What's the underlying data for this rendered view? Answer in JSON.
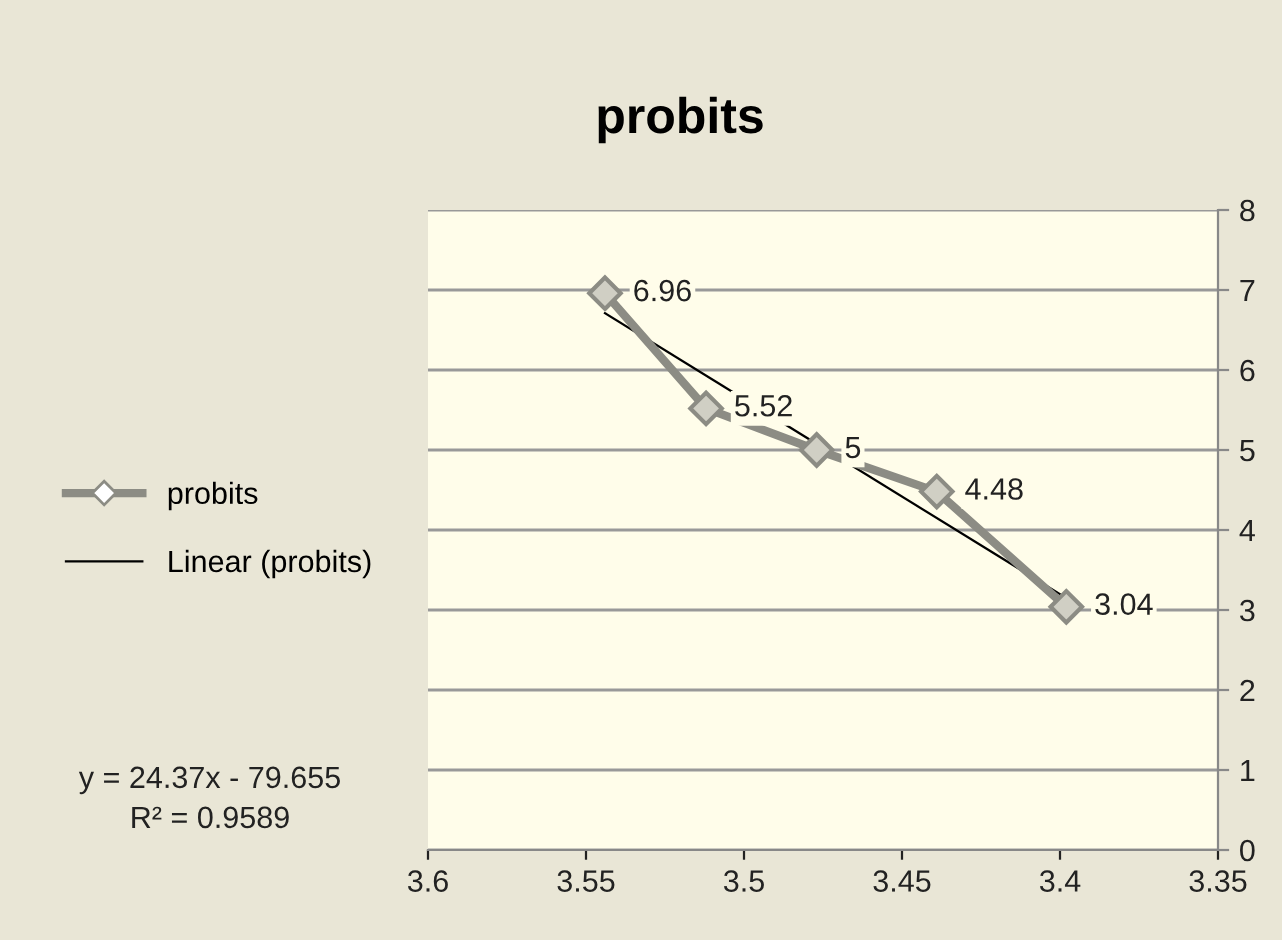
{
  "chart_data": {
    "type": "line",
    "title": "probits",
    "series": [
      {
        "name": "probits",
        "color": "#8c8c84",
        "x": [
          3.544,
          3.512,
          3.477,
          3.439,
          3.398
        ],
        "values": [
          6.96,
          5.52,
          5,
          4.48,
          3.04
        ],
        "marker": "diamond",
        "data_labels": true
      },
      {
        "name": "Linear (probits)",
        "color": "#000000",
        "x": [
          3.544,
          3.398
        ],
        "values": [
          6.71,
          3.15
        ],
        "marker": "none"
      }
    ],
    "xlim": [
      3.6,
      3.35
    ],
    "xticks": [
      3.6,
      3.55,
      3.5,
      3.45,
      3.4,
      3.35
    ],
    "ylim": [
      0,
      8
    ],
    "yticks": [
      0,
      1,
      2,
      3,
      4,
      5,
      6,
      7,
      8
    ],
    "grid": "y",
    "legend": "left",
    "annotations": [
      "y = 24.37x - 79.655",
      "R² = 0.9589"
    ]
  }
}
